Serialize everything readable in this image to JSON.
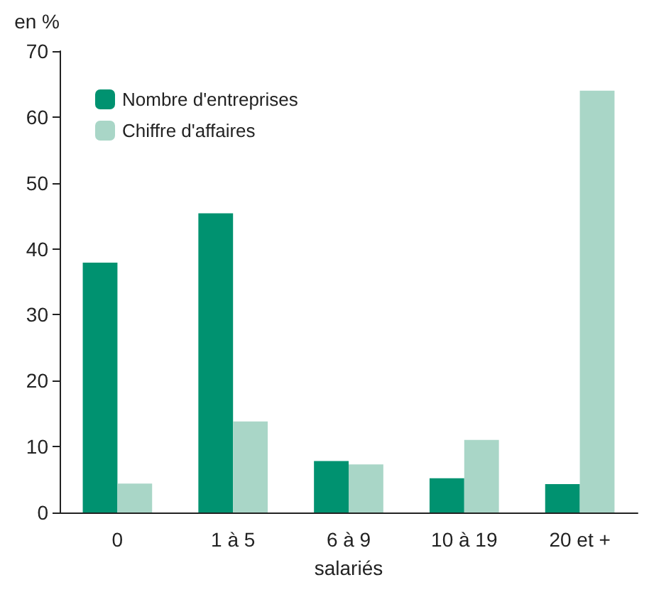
{
  "chart_data": {
    "type": "bar",
    "ylabel": "en %",
    "xlabel": "salariés",
    "categories": [
      "0",
      "1 à 5",
      "6 à 9",
      "10 à 19",
      "20 et +"
    ],
    "series": [
      {
        "name": "Nombre d'entreprises",
        "color": "#009270",
        "values": [
          37.9,
          45.4,
          7.8,
          5.2,
          4.3
        ]
      },
      {
        "name": "Chiffre d'affaires",
        "color": "#a9d6c7",
        "values": [
          4.4,
          13.8,
          7.3,
          11,
          64
        ]
      }
    ],
    "ylim": [
      0,
      70
    ],
    "yticks": [
      0,
      10,
      20,
      30,
      40,
      50,
      60,
      70
    ],
    "grid": false,
    "legend": "top left"
  }
}
